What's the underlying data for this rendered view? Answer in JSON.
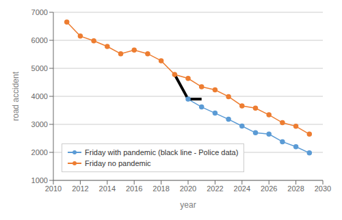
{
  "chart_data": {
    "type": "line",
    "xlabel": "year",
    "ylabel": "road accident",
    "x": [
      2011,
      2012,
      2013,
      2014,
      2015,
      2016,
      2017,
      2018,
      2019,
      2020,
      2021,
      2022,
      2023,
      2024,
      2025,
      2026,
      2027,
      2028,
      2029
    ],
    "series": [
      {
        "name": "Friday no pandemic",
        "color": "#ED7D31",
        "marker": "circle",
        "values": [
          6650,
          6150,
          5980,
          5780,
          5520,
          5650,
          5520,
          5270,
          4780,
          4640,
          4340,
          4230,
          3990,
          3660,
          3580,
          3340,
          3060,
          2930,
          2650
        ]
      },
      {
        "name": "Friday with pandemic (black line - Police data)",
        "color": "#5B9BD5",
        "marker": "circle",
        "values": [
          null,
          null,
          null,
          null,
          null,
          null,
          null,
          null,
          null,
          3900,
          3620,
          3400,
          3180,
          2940,
          2700,
          2650,
          2380,
          2200,
          1980
        ]
      },
      {
        "color": "#000000",
        "marker": "none",
        "values": [
          null,
          null,
          null,
          null,
          null,
          null,
          null,
          null,
          4780,
          3900,
          3900,
          null,
          null,
          null,
          null,
          null,
          null,
          null,
          null
        ]
      }
    ],
    "xlim": [
      2010,
      2030
    ],
    "ylim": [
      1000,
      7000
    ],
    "xticks": [
      2010,
      2012,
      2014,
      2016,
      2018,
      2020,
      2022,
      2024,
      2026,
      2028,
      2030
    ],
    "yticks": [
      1000,
      2000,
      3000,
      4000,
      5000,
      6000,
      7000
    ],
    "grid": true,
    "legend": "lower left"
  }
}
